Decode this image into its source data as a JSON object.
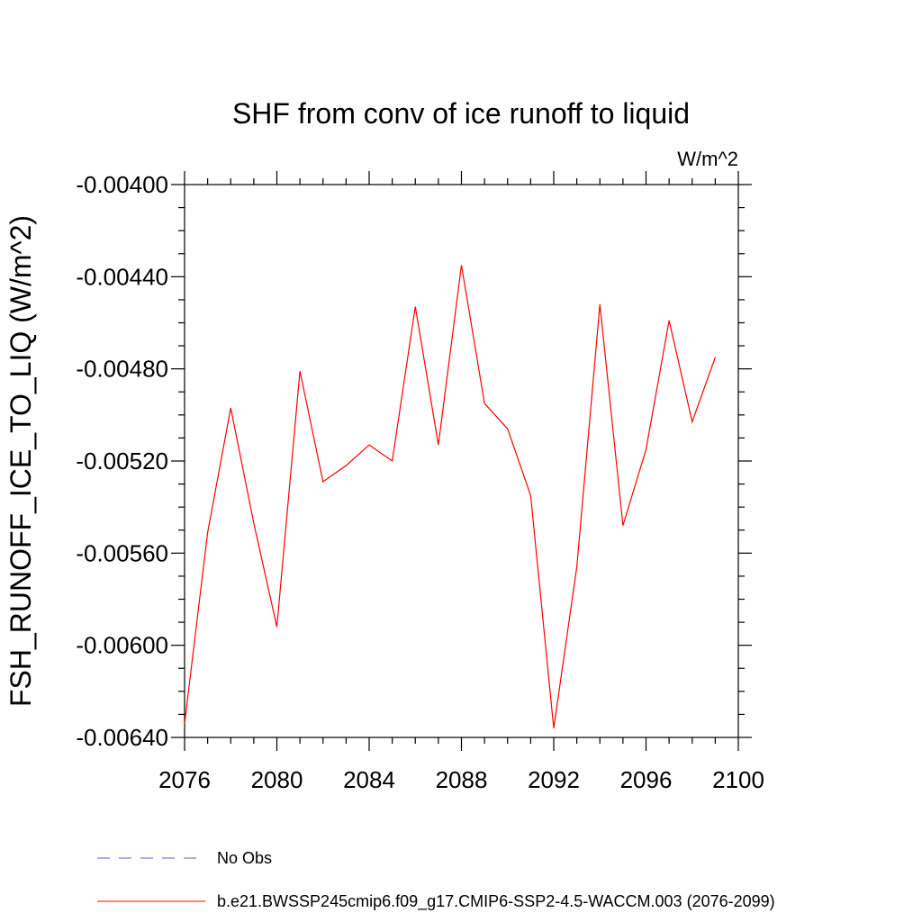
{
  "chart_data": {
    "type": "line",
    "title": "SHF from conv of ice runoff to liquid",
    "units": "W/m^2",
    "ylabel": "FSH_RUNOFF_ICE_TO_LIQ  (W/m^2)",
    "xlabel": "",
    "xlim": [
      2076,
      2100
    ],
    "ylim": [
      -0.0064,
      -0.004
    ],
    "x_ticks": [
      2076,
      2080,
      2084,
      2088,
      2092,
      2096,
      2100
    ],
    "x_tick_labels": [
      "2076",
      "2080",
      "2084",
      "2088",
      "2092",
      "2096",
      "2100"
    ],
    "y_ticks": [
      -0.004,
      -0.0044,
      -0.0048,
      -0.0052,
      -0.0056,
      -0.006,
      -0.0064
    ],
    "y_tick_labels": [
      "-0.00400",
      "-0.00440",
      "-0.00480",
      "-0.00520",
      "-0.00560",
      "-0.00600",
      "-0.00640"
    ],
    "grid": false,
    "series": [
      {
        "name": "b.e21.BWSSP245cmip6.f09_g17.CMIP6-SSP2-4.5-WACCM.003 (2076-2099)",
        "color": "#ff0000",
        "x": [
          2076,
          2077,
          2078,
          2079,
          2080,
          2081,
          2082,
          2083,
          2084,
          2085,
          2086,
          2087,
          2088,
          2089,
          2090,
          2091,
          2092,
          2093,
          2094,
          2095,
          2096,
          2097,
          2098,
          2099
        ],
        "values": [
          -0.00634,
          -0.00551,
          -0.00497,
          -0.00547,
          -0.00592,
          -0.00481,
          -0.00529,
          -0.00522,
          -0.00513,
          -0.0052,
          -0.00453,
          -0.00513,
          -0.00435,
          -0.00495,
          -0.00506,
          -0.00535,
          -0.00636,
          -0.00566,
          -0.00452,
          -0.00548,
          -0.00515,
          -0.00459,
          -0.00503,
          -0.00475
        ]
      }
    ],
    "legend": {
      "position": "bottom",
      "entries": [
        {
          "label": "No Obs",
          "color": "#6a5acd",
          "style": "dashed"
        },
        {
          "label": "b.e21.BWSSP245cmip6.f09_g17.CMIP6-SSP2-4.5-WACCM.003 (2076-2099)",
          "color": "#ff0000",
          "style": "solid"
        }
      ]
    }
  }
}
